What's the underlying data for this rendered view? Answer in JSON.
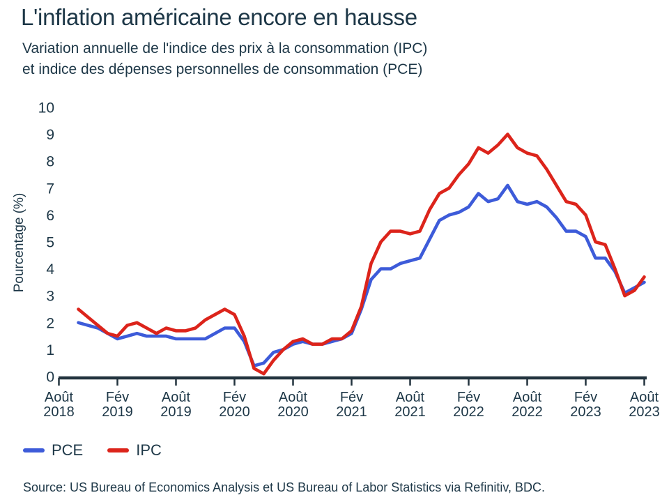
{
  "header": {
    "title": "L'inflation américaine encore en hausse",
    "subtitle_line1": "Variation annuelle de l'indice des prix à la consommation (IPC)",
    "subtitle_line2": "et indice des dépenses personnelles de consommation (PCE)"
  },
  "legend": {
    "items": [
      {
        "label": "PCE",
        "color": "#3d5bd9"
      },
      {
        "label": "IPC",
        "color": "#dc241b"
      }
    ]
  },
  "footer": {
    "source": "Source: US Bureau of Economics Analysis et US Bureau of Labor Statistics via Refinitiv, BDC."
  },
  "colors": {
    "text_dark": "#1d3747",
    "axis": "#22333e",
    "pce_blue": "#3d5bd9",
    "ipc_red": "#dc241b",
    "background": "#ffffff"
  },
  "chart_data": {
    "type": "line",
    "title": "L'inflation américaine encore en hausse",
    "ylabel": "Pourcentage (%)",
    "ylim": [
      0,
      10
    ],
    "yticks": [
      0,
      1,
      2,
      3,
      4,
      5,
      6,
      7,
      8,
      9,
      10
    ],
    "grid": false,
    "legend_position": "bottom-left",
    "x_unit": "month",
    "x_ticks": [
      {
        "month": 0,
        "label": [
          "Août",
          "2018"
        ]
      },
      {
        "month": 6,
        "label": [
          "Fév",
          "2019"
        ]
      },
      {
        "month": 12,
        "label": [
          "Août",
          "2019"
        ]
      },
      {
        "month": 18,
        "label": [
          "Fév",
          "2020"
        ]
      },
      {
        "month": 24,
        "label": [
          "Août",
          "2020"
        ]
      },
      {
        "month": 30,
        "label": [
          "Fév",
          "2021"
        ]
      },
      {
        "month": 36,
        "label": [
          "Août",
          "2021"
        ]
      },
      {
        "month": 42,
        "label": [
          "Fév",
          "2022"
        ]
      },
      {
        "month": 48,
        "label": [
          "Août",
          "2022"
        ]
      },
      {
        "month": 54,
        "label": [
          "Fév",
          "2023"
        ]
      },
      {
        "month": 60,
        "label": [
          "Août",
          "2023"
        ]
      }
    ],
    "x": [
      "2018-10",
      "2018-11",
      "2018-12",
      "2019-01",
      "2019-02",
      "2019-03",
      "2019-04",
      "2019-05",
      "2019-06",
      "2019-07",
      "2019-08",
      "2019-09",
      "2019-10",
      "2019-11",
      "2019-12",
      "2020-01",
      "2020-02",
      "2020-03",
      "2020-04",
      "2020-05",
      "2020-06",
      "2020-07",
      "2020-08",
      "2020-09",
      "2020-10",
      "2020-11",
      "2020-12",
      "2021-01",
      "2021-02",
      "2021-03",
      "2021-04",
      "2021-05",
      "2021-06",
      "2021-07",
      "2021-08",
      "2021-09",
      "2021-10",
      "2021-11",
      "2021-12",
      "2022-01",
      "2022-02",
      "2022-03",
      "2022-04",
      "2022-05",
      "2022-06",
      "2022-07",
      "2022-08",
      "2022-09",
      "2022-10",
      "2022-11",
      "2022-12",
      "2023-01",
      "2023-02",
      "2023-03",
      "2023-04",
      "2023-05",
      "2023-06",
      "2023-07",
      "2023-08"
    ],
    "series": [
      {
        "name": "PCE",
        "color": "#3d5bd9",
        "values": [
          2.0,
          1.9,
          1.8,
          1.6,
          1.4,
          1.5,
          1.6,
          1.5,
          1.5,
          1.5,
          1.4,
          1.4,
          1.4,
          1.4,
          1.6,
          1.8,
          1.8,
          1.3,
          0.4,
          0.5,
          0.9,
          1.0,
          1.2,
          1.3,
          1.2,
          1.2,
          1.3,
          1.4,
          1.6,
          2.5,
          3.6,
          4.0,
          4.0,
          4.2,
          4.3,
          4.4,
          5.1,
          5.8,
          6.0,
          6.1,
          6.3,
          6.8,
          6.5,
          6.6,
          7.1,
          6.5,
          6.4,
          6.5,
          6.3,
          5.9,
          5.4,
          5.4,
          5.2,
          4.4,
          4.4,
          3.9,
          3.1,
          3.3,
          3.5
        ]
      },
      {
        "name": "IPC",
        "color": "#dc241b",
        "values": [
          2.5,
          2.2,
          1.9,
          1.6,
          1.5,
          1.9,
          2.0,
          1.8,
          1.6,
          1.8,
          1.7,
          1.7,
          1.8,
          2.1,
          2.3,
          2.5,
          2.3,
          1.5,
          0.3,
          0.1,
          0.6,
          1.0,
          1.3,
          1.4,
          1.2,
          1.2,
          1.4,
          1.4,
          1.7,
          2.6,
          4.2,
          5.0,
          5.4,
          5.4,
          5.3,
          5.4,
          6.2,
          6.8,
          7.0,
          7.5,
          7.9,
          8.5,
          8.3,
          8.6,
          9.0,
          8.5,
          8.3,
          8.2,
          7.7,
          7.1,
          6.5,
          6.4,
          6.0,
          5.0,
          4.9,
          4.0,
          3.0,
          3.2,
          3.7
        ]
      }
    ]
  }
}
